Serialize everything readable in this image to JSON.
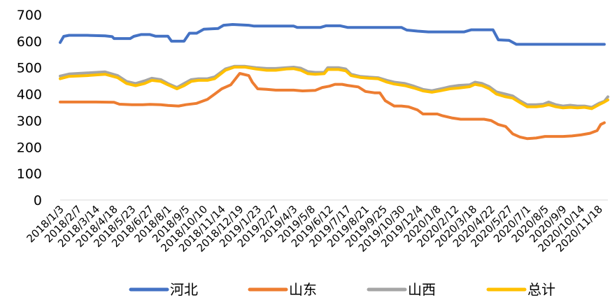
{
  "chart_data": {
    "type": "line",
    "title": "",
    "xlabel": "",
    "ylabel": "",
    "ylim": [
      0,
      700
    ],
    "yticks": [
      0,
      100,
      200,
      300,
      400,
      500,
      600,
      700
    ],
    "grid": false,
    "legend_position": "bottom",
    "categories": [
      "2018/1/3",
      "2018/2/7",
      "2018/3/14",
      "2018/4/18",
      "2018/5/23",
      "2018/6/27",
      "2018/8/1",
      "2018/9/5",
      "2018/10/10",
      "2018/11/14",
      "2018/12/19",
      "2019/1/23",
      "2019/2/27",
      "2019/4/3",
      "2019/5/8",
      "2019/6/12",
      "2019/7/17",
      "2019/8/21",
      "2019/9/25",
      "2019/10/30",
      "2019/12/4",
      "2020/1/8",
      "2020/2/12",
      "2020/3/18",
      "2020/4/22",
      "2020/5/27",
      "2020/7/1",
      "2020/8/5",
      "2020/9/9",
      "2020/10/14",
      "2020/11/18"
    ],
    "series": [
      {
        "name": "河北",
        "color": "#4472C4",
        "values": [
          [
            0,
            595
          ],
          [
            0.2,
            618
          ],
          [
            0.5,
            622
          ],
          [
            1.5,
            622
          ],
          [
            2.5,
            620
          ],
          [
            2.9,
            617
          ],
          [
            3.0,
            610
          ],
          [
            3.9,
            610
          ],
          [
            4.1,
            618
          ],
          [
            4.5,
            625
          ],
          [
            5.0,
            625
          ],
          [
            5.3,
            619
          ],
          [
            6.0,
            619
          ],
          [
            6.2,
            600
          ],
          [
            6.9,
            600
          ],
          [
            7.2,
            630
          ],
          [
            7.6,
            630
          ],
          [
            8.0,
            645
          ],
          [
            8.8,
            648
          ],
          [
            9.1,
            660
          ],
          [
            9.6,
            663
          ],
          [
            10.5,
            660
          ],
          [
            10.8,
            657
          ],
          [
            13.0,
            657
          ],
          [
            13.2,
            652
          ],
          [
            14.5,
            652
          ],
          [
            14.8,
            658
          ],
          [
            15.6,
            658
          ],
          [
            16.0,
            652
          ],
          [
            17.5,
            652
          ],
          [
            19.0,
            652
          ],
          [
            19.3,
            642
          ],
          [
            19.9,
            638
          ],
          [
            20.5,
            635
          ],
          [
            22.5,
            635
          ],
          [
            22.9,
            643
          ],
          [
            24.1,
            643
          ],
          [
            24.4,
            605
          ],
          [
            25.0,
            603
          ],
          [
            25.4,
            588
          ],
          [
            30.3,
            588
          ]
        ]
      },
      {
        "name": "山东",
        "color": "#ED7D31",
        "values": [
          [
            0,
            370
          ],
          [
            1.0,
            370
          ],
          [
            2.0,
            370
          ],
          [
            3.0,
            369
          ],
          [
            3.3,
            362
          ],
          [
            4.0,
            360
          ],
          [
            4.6,
            360
          ],
          [
            5.0,
            361
          ],
          [
            5.6,
            360
          ],
          [
            6.0,
            357
          ],
          [
            6.6,
            355
          ],
          [
            7.0,
            360
          ],
          [
            7.6,
            365
          ],
          [
            8.2,
            380
          ],
          [
            8.6,
            400
          ],
          [
            9.0,
            420
          ],
          [
            9.5,
            435
          ],
          [
            10.0,
            478
          ],
          [
            10.5,
            470
          ],
          [
            10.7,
            445
          ],
          [
            11.0,
            420
          ],
          [
            11.5,
            418
          ],
          [
            12.0,
            415
          ],
          [
            13.0,
            415
          ],
          [
            13.5,
            412
          ],
          [
            14.2,
            414
          ],
          [
            14.6,
            425
          ],
          [
            15.0,
            430
          ],
          [
            15.3,
            437
          ],
          [
            15.7,
            437
          ],
          [
            16.0,
            433
          ],
          [
            16.6,
            427
          ],
          [
            17.0,
            410
          ],
          [
            17.5,
            405
          ],
          [
            17.8,
            405
          ],
          [
            18.1,
            375
          ],
          [
            18.6,
            355
          ],
          [
            19.0,
            355
          ],
          [
            19.4,
            352
          ],
          [
            19.9,
            340
          ],
          [
            20.2,
            325
          ],
          [
            21.0,
            325
          ],
          [
            21.3,
            318
          ],
          [
            21.8,
            310
          ],
          [
            22.3,
            305
          ],
          [
            23.0,
            305
          ],
          [
            23.6,
            305
          ],
          [
            24.0,
            300
          ],
          [
            24.4,
            285
          ],
          [
            24.8,
            278
          ],
          [
            25.2,
            250
          ],
          [
            25.6,
            238
          ],
          [
            26.0,
            232
          ],
          [
            26.5,
            234
          ],
          [
            27.0,
            240
          ],
          [
            27.5,
            240
          ],
          [
            28.0,
            240
          ],
          [
            28.5,
            242
          ],
          [
            29.0,
            246
          ],
          [
            29.5,
            252
          ],
          [
            29.9,
            262
          ],
          [
            30.1,
            285
          ],
          [
            30.3,
            292
          ]
        ]
      },
      {
        "name": "山西",
        "color": "#A5A5A5",
        "values": [
          [
            0,
            468
          ],
          [
            0.5,
            476
          ],
          [
            1.5,
            480
          ],
          [
            2.5,
            484
          ],
          [
            3.2,
            470
          ],
          [
            3.7,
            448
          ],
          [
            4.2,
            440
          ],
          [
            4.7,
            450
          ],
          [
            5.1,
            460
          ],
          [
            5.6,
            455
          ],
          [
            6.0,
            440
          ],
          [
            6.5,
            425
          ],
          [
            6.9,
            440
          ],
          [
            7.3,
            455
          ],
          [
            7.7,
            458
          ],
          [
            8.2,
            458
          ],
          [
            8.6,
            465
          ],
          [
            9.2,
            495
          ],
          [
            9.7,
            505
          ],
          [
            10.3,
            505
          ],
          [
            10.9,
            500
          ],
          [
            11.5,
            497
          ],
          [
            12.0,
            497
          ],
          [
            12.6,
            500
          ],
          [
            13.0,
            502
          ],
          [
            13.4,
            498
          ],
          [
            13.8,
            485
          ],
          [
            14.2,
            482
          ],
          [
            14.7,
            482
          ],
          [
            14.9,
            500
          ],
          [
            15.5,
            500
          ],
          [
            15.9,
            495
          ],
          [
            16.2,
            475
          ],
          [
            16.7,
            467
          ],
          [
            17.2,
            464
          ],
          [
            17.7,
            462
          ],
          [
            18.2,
            452
          ],
          [
            18.6,
            445
          ],
          [
            19.2,
            440
          ],
          [
            19.7,
            430
          ],
          [
            20.2,
            418
          ],
          [
            20.7,
            413
          ],
          [
            21.2,
            420
          ],
          [
            21.7,
            428
          ],
          [
            22.2,
            433
          ],
          [
            22.8,
            435
          ],
          [
            23.1,
            445
          ],
          [
            23.5,
            440
          ],
          [
            23.9,
            428
          ],
          [
            24.3,
            408
          ],
          [
            24.8,
            400
          ],
          [
            25.2,
            393
          ],
          [
            25.6,
            375
          ],
          [
            26.0,
            360
          ],
          [
            26.5,
            360
          ],
          [
            26.9,
            362
          ],
          [
            27.2,
            370
          ],
          [
            27.6,
            360
          ],
          [
            28.0,
            355
          ],
          [
            28.4,
            358
          ],
          [
            28.8,
            355
          ],
          [
            29.2,
            355
          ],
          [
            29.6,
            350
          ],
          [
            30.0,
            365
          ],
          [
            30.3,
            373
          ],
          [
            30.5,
            390
          ]
        ]
      },
      {
        "name": "总计",
        "color": "#FFC000",
        "values": [
          [
            0,
            458
          ],
          [
            0.5,
            467
          ],
          [
            1.5,
            470
          ],
          [
            2.5,
            475
          ],
          [
            3.2,
            462
          ],
          [
            3.7,
            440
          ],
          [
            4.2,
            432
          ],
          [
            4.7,
            440
          ],
          [
            5.1,
            452
          ],
          [
            5.6,
            448
          ],
          [
            6.0,
            435
          ],
          [
            6.5,
            420
          ],
          [
            6.9,
            432
          ],
          [
            7.3,
            448
          ],
          [
            7.7,
            452
          ],
          [
            8.2,
            452
          ],
          [
            8.6,
            458
          ],
          [
            9.2,
            490
          ],
          [
            9.7,
            502
          ],
          [
            10.3,
            502
          ],
          [
            10.9,
            495
          ],
          [
            11.5,
            490
          ],
          [
            12.0,
            490
          ],
          [
            12.6,
            495
          ],
          [
            13.0,
            496
          ],
          [
            13.4,
            490
          ],
          [
            13.8,
            477
          ],
          [
            14.2,
            475
          ],
          [
            14.7,
            477
          ],
          [
            14.9,
            493
          ],
          [
            15.5,
            493
          ],
          [
            15.9,
            488
          ],
          [
            16.2,
            470
          ],
          [
            16.7,
            463
          ],
          [
            17.2,
            460
          ],
          [
            17.7,
            458
          ],
          [
            18.2,
            445
          ],
          [
            18.6,
            438
          ],
          [
            19.2,
            432
          ],
          [
            19.7,
            423
          ],
          [
            20.2,
            412
          ],
          [
            20.7,
            407
          ],
          [
            21.2,
            413
          ],
          [
            21.7,
            420
          ],
          [
            22.2,
            423
          ],
          [
            22.8,
            428
          ],
          [
            23.1,
            437
          ],
          [
            23.5,
            432
          ],
          [
            23.9,
            420
          ],
          [
            24.3,
            400
          ],
          [
            24.8,
            390
          ],
          [
            25.2,
            385
          ],
          [
            25.6,
            368
          ],
          [
            26.0,
            352
          ],
          [
            26.5,
            352
          ],
          [
            26.9,
            355
          ],
          [
            27.2,
            360
          ],
          [
            27.6,
            352
          ],
          [
            28.0,
            348
          ],
          [
            28.4,
            350
          ],
          [
            28.8,
            348
          ],
          [
            29.2,
            350
          ],
          [
            29.6,
            345
          ],
          [
            30.0,
            360
          ],
          [
            30.3,
            370
          ],
          [
            30.5,
            378
          ]
        ]
      }
    ]
  }
}
